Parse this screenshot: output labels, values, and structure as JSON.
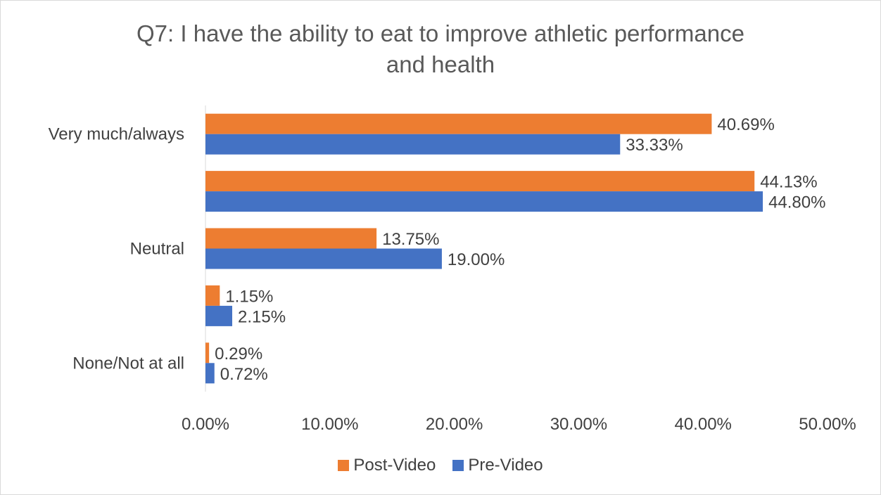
{
  "chart_data": {
    "type": "bar",
    "orientation": "horizontal",
    "title_lines": [
      "Q7: I have the ability to eat to improve athletic performance",
      "and health"
    ],
    "categories": [
      "Very much/always",
      "",
      "Neutral",
      "",
      "None/Not at all"
    ],
    "series": [
      {
        "name": "Post-Video",
        "color": "#ed7d31",
        "values": [
          40.69,
          44.13,
          13.75,
          1.15,
          0.29
        ],
        "labels": [
          "40.69%",
          "44.13%",
          "13.75%",
          "1.15%",
          "0.29%"
        ]
      },
      {
        "name": "Pre-Video",
        "color": "#4472c4",
        "values": [
          33.33,
          44.8,
          19.0,
          2.15,
          0.72
        ],
        "labels": [
          "33.33%",
          "44.80%",
          "19.00%",
          "2.15%",
          "0.72%"
        ]
      }
    ],
    "xlim": [
      0,
      50
    ],
    "xticks": [
      "0.00%",
      "10.00%",
      "20.00%",
      "30.00%",
      "40.00%",
      "50.00%"
    ],
    "grid": false,
    "legend_position": "bottom"
  }
}
